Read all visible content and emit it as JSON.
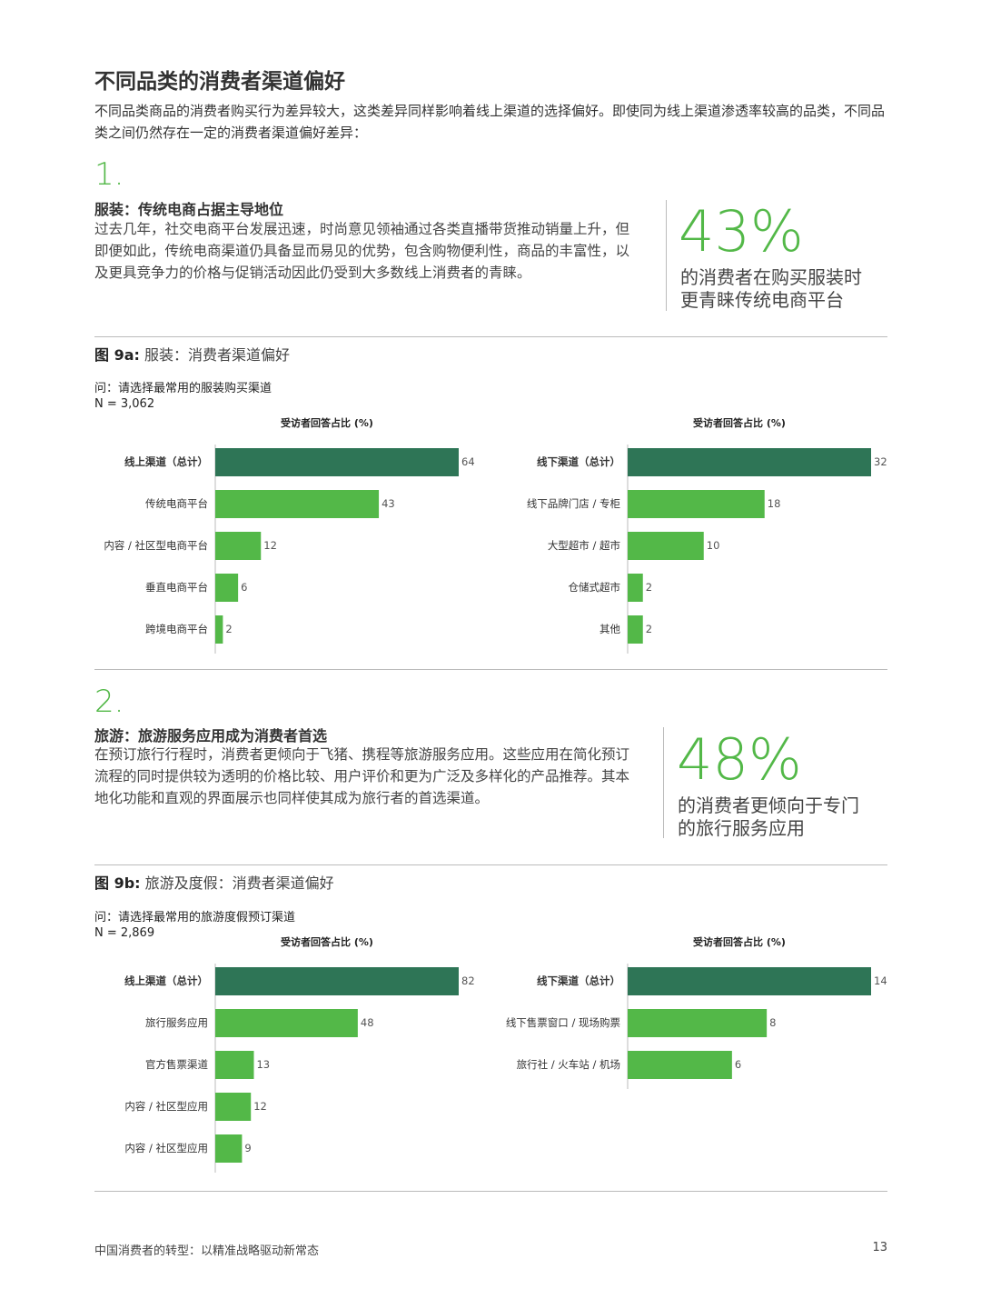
{
  "title": "不同品类的消费者渠道偏好",
  "intro": "不同品类商品的消费者购买行为差异较大，这类差异同样影响着线上渠道的选择偏好。即使同为线上渠道渗透率较高的品类，不同品类之间仍然存在一定的消费者渠道偏好差异：",
  "sections": [
    {
      "number": "1.",
      "heading": "服装：传统电商占据主导地位",
      "body": "过去几年，社交电商平台发展迅速，时尚意见领袖通过各类直播带货推动销量上升，但即便如此，传统电商渠道仍具备显而易见的优势，包含购物便利性，商品的丰富性，以及更具竞争力的价格与促销活动因此仍受到大多数线上消费者的青睐。",
      "stat": "43%",
      "stat_text": "的消费者在购买服装时更青睐传统电商平台",
      "figure_label": "图 9a:",
      "figure_title": "服装：消费者渠道偏好",
      "question": "问：请选择最常用的服装购买渠道",
      "sample": "N = 3,062"
    },
    {
      "number": "2.",
      "heading": "旅游：旅游服务应用成为消费者首选",
      "body": "在预订旅行行程时，消费者更倾向于飞猪、携程等旅游服务应用。这些应用在简化预订流程的同时提供较为透明的价格比较、用户评价和更为广泛及多样化的产品推荐。其本地化功能和直观的界面展示也同样使其成为旅行者的首选渠道。",
      "stat": "48%",
      "stat_text": "的消费者更倾向于专门的旅行服务应用",
      "figure_label": "图 9b:",
      "figure_title": "旅游及度假：消费者渠道偏好",
      "question": "问：请选择最常用的旅游度假预订渠道",
      "sample": "N = 2,869"
    }
  ],
  "chart_data": [
    {
      "type": "bar",
      "orientation": "horizontal",
      "x_label": "受访者回答占比 (%)",
      "categories": [
        "线上渠道（总计）",
        "传统电商平台",
        "内容 / 社区型电商平台",
        "垂直电商平台",
        "跨境电商平台"
      ],
      "values": [
        64,
        43,
        12,
        6,
        2
      ],
      "colors": [
        "#2e7556",
        "#53b848",
        "#53b848",
        "#53b848",
        "#53b848"
      ]
    },
    {
      "type": "bar",
      "orientation": "horizontal",
      "x_label": "受访者回答占比 (%)",
      "categories": [
        "线下渠道（总计）",
        "线下品牌门店 / 专柜",
        "大型超市 / 超市",
        "仓储式超市",
        "其他"
      ],
      "values": [
        32,
        18,
        10,
        2,
        2
      ],
      "colors": [
        "#2e7556",
        "#53b848",
        "#53b848",
        "#53b848",
        "#53b848"
      ]
    },
    {
      "type": "bar",
      "orientation": "horizontal",
      "x_label": "受访者回答占比 (%)",
      "categories": [
        "线上渠道（总计）",
        "旅行服务应用",
        "官方售票渠道",
        "内容 / 社区型应用",
        "内容 / 社区型应用"
      ],
      "values": [
        82,
        48,
        13,
        12,
        9
      ],
      "colors": [
        "#2e7556",
        "#53b848",
        "#53b848",
        "#53b848",
        "#53b848"
      ]
    },
    {
      "type": "bar",
      "orientation": "horizontal",
      "x_label": "受访者回答占比 (%)",
      "categories": [
        "线下渠道（总计）",
        "线下售票窗口 / 现场购票",
        "旅行社 / 火车站 / 机场"
      ],
      "values": [
        14,
        8,
        6
      ],
      "colors": [
        "#2e7556",
        "#53b848",
        "#53b848"
      ]
    }
  ],
  "footer": {
    "text": "中国消费者的转型：以精准战略驱动新常态",
    "page": "13"
  }
}
